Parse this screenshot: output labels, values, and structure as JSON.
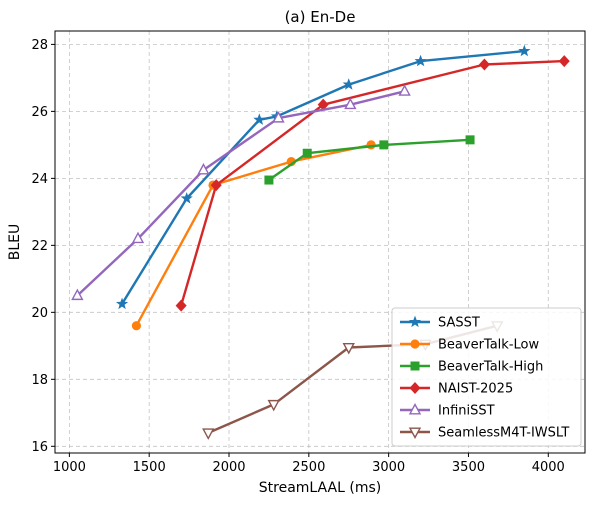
{
  "chart_data": {
    "type": "line",
    "title": "(a) En-De",
    "xlabel": "StreamLAAL (ms)",
    "ylabel": "BLEU",
    "xlim": [
      910,
      4230
    ],
    "ylim": [
      15.8,
      28.4
    ],
    "xticks": [
      1000,
      1500,
      2000,
      2500,
      3000,
      3500,
      4000
    ],
    "yticks": [
      16,
      18,
      20,
      22,
      24,
      26,
      28
    ],
    "grid": true,
    "legend_position": "lower-right",
    "series": [
      {
        "name": "SASST",
        "color": "#1f77b4",
        "marker": "star",
        "points": [
          [
            1330,
            20.25
          ],
          [
            1735,
            23.4
          ],
          [
            2190,
            25.75
          ],
          [
            2300,
            25.85
          ],
          [
            2750,
            26.8
          ],
          [
            3200,
            27.5
          ],
          [
            3850,
            27.8
          ]
        ]
      },
      {
        "name": "BeaverTalk-Low",
        "color": "#ff7f0e",
        "marker": "circle",
        "points": [
          [
            1420,
            19.6
          ],
          [
            1900,
            23.8
          ],
          [
            2390,
            24.5
          ],
          [
            2890,
            25.0
          ]
        ]
      },
      {
        "name": "BeaverTalk-High",
        "color": "#2ca02c",
        "marker": "square",
        "points": [
          [
            2250,
            23.95
          ],
          [
            2490,
            24.75
          ],
          [
            2970,
            25.0
          ],
          [
            3510,
            25.15
          ]
        ]
      },
      {
        "name": "NAIST-2025",
        "color": "#d62728",
        "marker": "diamond",
        "points": [
          [
            1700,
            20.2
          ],
          [
            1920,
            23.8
          ],
          [
            2590,
            26.2
          ],
          [
            3600,
            27.4
          ],
          [
            4100,
            27.5
          ]
        ]
      },
      {
        "name": "InfiniSST",
        "color": "#9467bd",
        "marker": "triangle-up-open",
        "points": [
          [
            1050,
            20.5
          ],
          [
            1430,
            22.2
          ],
          [
            1840,
            24.25
          ],
          [
            2310,
            25.8
          ],
          [
            2760,
            26.2
          ],
          [
            3100,
            26.6
          ]
        ]
      },
      {
        "name": "SeamlessM4T-IWSLT",
        "color": "#8c564b",
        "marker": "triangle-down-open",
        "points": [
          [
            1870,
            16.4
          ],
          [
            2280,
            17.25
          ],
          [
            2750,
            18.95
          ],
          [
            3230,
            19.05
          ],
          [
            3680,
            19.6
          ]
        ]
      }
    ]
  }
}
